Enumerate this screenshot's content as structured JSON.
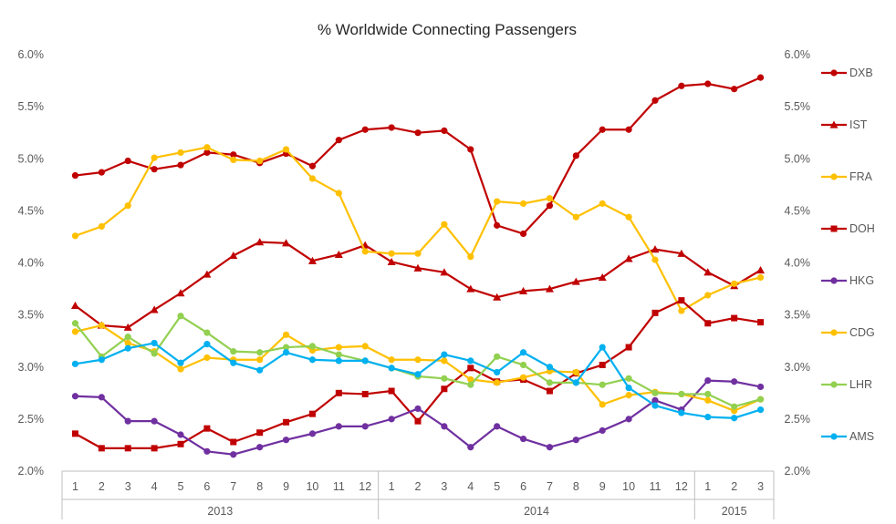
{
  "chart_data": {
    "type": "line",
    "title": "% Worldwide Connecting Passengers",
    "xlabel": "",
    "ylabel": "",
    "ylim": [
      2.0,
      6.0
    ],
    "yticks": [
      "2.0%",
      "2.5%",
      "3.0%",
      "3.5%",
      "4.0%",
      "4.5%",
      "5.0%",
      "5.5%",
      "6.0%"
    ],
    "categories": [
      "1",
      "2",
      "3",
      "4",
      "5",
      "6",
      "7",
      "8",
      "9",
      "10",
      "11",
      "12",
      "1",
      "2",
      "3",
      "4",
      "5",
      "6",
      "7",
      "8",
      "9",
      "10",
      "11",
      "12",
      "1",
      "2",
      "3"
    ],
    "year_groups": [
      {
        "label": "2013",
        "count": 12
      },
      {
        "label": "2014",
        "count": 12
      },
      {
        "label": "2015",
        "count": 3
      }
    ],
    "grid": false,
    "legend_position": "right",
    "series": [
      {
        "name": "DXB",
        "color": "#C00000",
        "marker": "circle",
        "values": [
          4.84,
          4.87,
          4.98,
          4.9,
          4.94,
          5.06,
          5.04,
          4.96,
          5.05,
          4.93,
          5.18,
          5.28,
          5.3,
          5.25,
          5.27,
          5.09,
          4.36,
          4.28,
          4.55,
          5.03,
          5.28,
          5.28,
          5.56,
          5.7,
          5.72,
          5.67,
          5.78
        ]
      },
      {
        "name": "IST",
        "color": "#C00000",
        "marker": "triangle",
        "values": [
          3.59,
          3.4,
          3.38,
          3.55,
          3.71,
          3.89,
          4.07,
          4.2,
          4.19,
          4.02,
          4.08,
          4.17,
          4.01,
          3.95,
          3.91,
          3.75,
          3.67,
          3.73,
          3.75,
          3.82,
          3.86,
          4.04,
          4.13,
          4.09,
          3.91,
          3.78,
          3.93
        ]
      },
      {
        "name": "FRA",
        "color": "#FFC000",
        "marker": "circle",
        "values": [
          4.26,
          4.35,
          4.55,
          5.01,
          5.06,
          5.11,
          4.99,
          4.98,
          5.09,
          4.81,
          4.67,
          4.11,
          4.09,
          4.09,
          4.37,
          4.06,
          4.59,
          4.57,
          4.62,
          4.44,
          4.57,
          4.44,
          4.03,
          3.54,
          3.69,
          3.8,
          3.86
        ]
      },
      {
        "name": "DOH",
        "color": "#C00000",
        "marker": "square",
        "values": [
          2.36,
          2.22,
          2.22,
          2.22,
          2.26,
          2.41,
          2.28,
          2.37,
          2.47,
          2.55,
          2.75,
          2.74,
          2.77,
          2.48,
          2.79,
          2.99,
          2.86,
          2.88,
          2.77,
          2.94,
          3.02,
          3.19,
          3.52,
          3.64,
          3.42,
          3.47,
          3.43
        ]
      },
      {
        "name": "HKG",
        "color": "#7030A0",
        "marker": "circle",
        "values": [
          2.72,
          2.71,
          2.48,
          2.48,
          2.35,
          2.19,
          2.16,
          2.23,
          2.3,
          2.36,
          2.43,
          2.43,
          2.5,
          2.6,
          2.43,
          2.23,
          2.43,
          2.31,
          2.23,
          2.3,
          2.39,
          2.5,
          2.68,
          2.59,
          2.87,
          2.86,
          2.81
        ]
      },
      {
        "name": "CDG",
        "color": "#FFC000",
        "marker": "circle",
        "values": [
          3.34,
          3.4,
          3.23,
          3.15,
          2.98,
          3.09,
          3.07,
          3.07,
          3.31,
          3.16,
          3.19,
          3.2,
          3.07,
          3.07,
          3.06,
          2.88,
          2.85,
          2.9,
          2.96,
          2.95,
          2.64,
          2.73,
          2.76,
          2.74,
          2.68,
          2.58,
          2.69
        ]
      },
      {
        "name": "LHR",
        "color": "#92D050",
        "marker": "circle",
        "values": [
          3.42,
          3.1,
          3.29,
          3.13,
          3.49,
          3.33,
          3.15,
          3.14,
          3.19,
          3.2,
          3.12,
          3.06,
          2.99,
          2.91,
          2.89,
          2.83,
          3.1,
          3.02,
          2.85,
          2.85,
          2.83,
          2.89,
          2.75,
          2.74,
          2.74,
          2.62,
          2.69
        ]
      },
      {
        "name": "AMS",
        "color": "#00B0F0",
        "marker": "circle",
        "values": [
          3.03,
          3.07,
          3.18,
          3.23,
          3.04,
          3.22,
          3.04,
          2.97,
          3.14,
          3.07,
          3.06,
          3.06,
          2.99,
          2.93,
          3.12,
          3.06,
          2.95,
          3.14,
          3.0,
          2.85,
          3.19,
          2.8,
          2.63,
          2.56,
          2.52,
          2.51,
          2.59
        ]
      }
    ]
  }
}
